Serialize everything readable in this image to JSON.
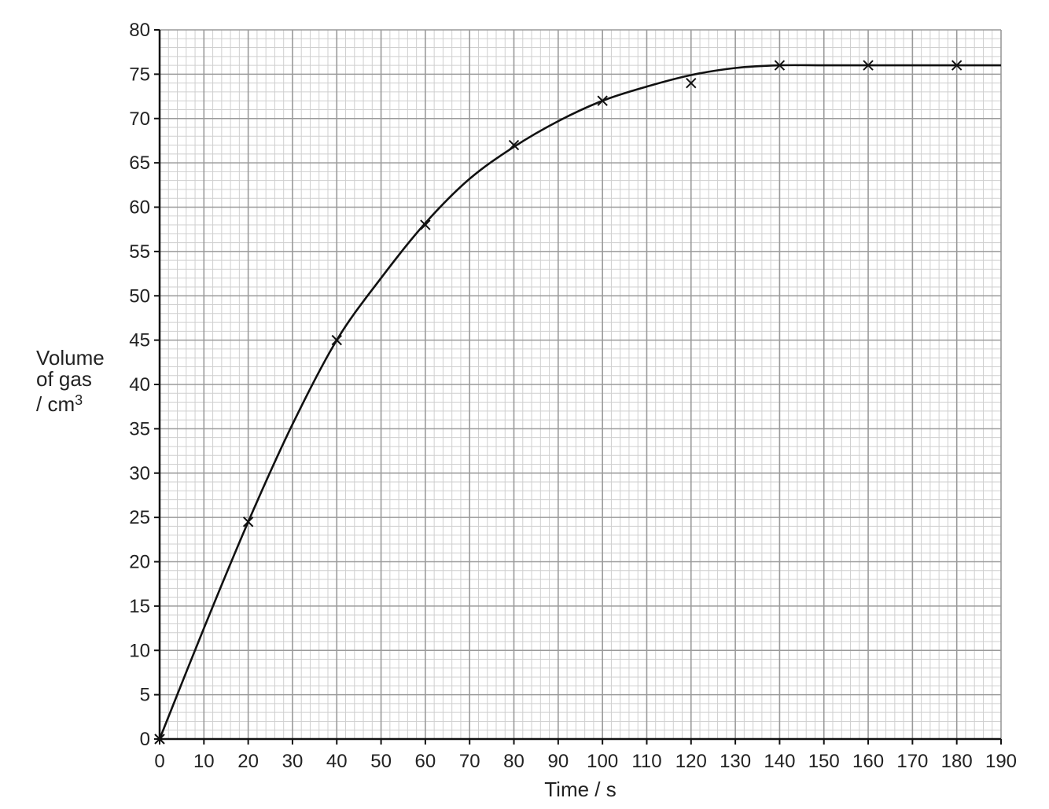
{
  "chart_data": {
    "type": "line",
    "xlabel": "Time / s",
    "ylabel": {
      "line1": "Volume",
      "line2": "of gas",
      "line3_prefix": "/ cm",
      "line3_superscript": "3"
    },
    "xlim": [
      0,
      190
    ],
    "ylim": [
      0,
      80
    ],
    "x_ticks": [
      0,
      10,
      20,
      30,
      40,
      50,
      60,
      70,
      80,
      90,
      100,
      110,
      120,
      130,
      140,
      150,
      160,
      170,
      180,
      190
    ],
    "y_ticks": [
      0,
      5,
      10,
      15,
      20,
      25,
      30,
      35,
      40,
      45,
      50,
      55,
      60,
      65,
      70,
      75,
      80
    ],
    "grid": true,
    "points": {
      "x": [
        0,
        20,
        40,
        60,
        80,
        100,
        120,
        140,
        160,
        180
      ],
      "y": [
        0,
        24.5,
        45,
        58,
        67,
        72,
        74,
        76,
        76,
        76
      ],
      "marker": "cross"
    },
    "curve": {
      "x": [
        0,
        10,
        20,
        30,
        40,
        50,
        60,
        70,
        80,
        90,
        100,
        110,
        120,
        130,
        140,
        150,
        160,
        170,
        180,
        190
      ],
      "y": [
        0,
        12.5,
        24.5,
        35.5,
        45,
        52,
        58.2,
        63.2,
        66.8,
        69.7,
        72,
        73.6,
        74.9,
        75.7,
        76,
        76,
        76,
        76,
        76,
        76
      ]
    },
    "colors": {
      "line": "#111111",
      "grid_major": "#9a9a9a",
      "grid_minor": "#cfcfcf"
    }
  }
}
